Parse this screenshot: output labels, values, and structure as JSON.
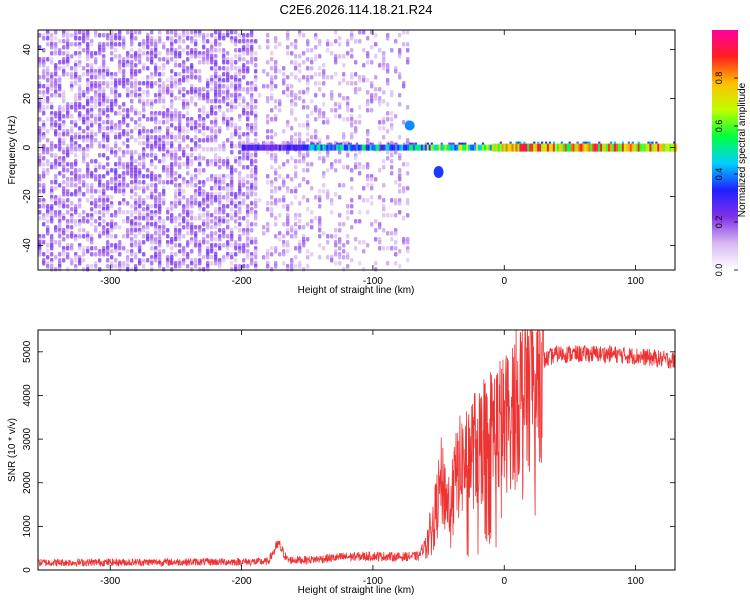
{
  "title": "C2E6.2026.114.18.21.R24",
  "chart_data": [
    {
      "type": "heatmap",
      "xlabel": "Height of straight line (km)",
      "ylabel": "Frequency (Hz)",
      "xlim": [
        -355,
        130
      ],
      "ylim": [
        -50,
        48
      ],
      "xticks": [
        -300,
        -200,
        -100,
        0,
        100
      ],
      "yticks": [
        -40,
        -20,
        0,
        20,
        40
      ],
      "tick_labels_x": [
        "-300",
        "-200",
        "-100",
        "0",
        "100"
      ],
      "tick_labels_y": [
        "-40",
        "-20",
        "0",
        "20",
        "40"
      ],
      "grid": false,
      "colorbar": {
        "label": "Normalized spectral amplitude",
        "range": [
          0,
          1
        ],
        "ticks": [
          0.0,
          0.2,
          0.4,
          0.6,
          0.8
        ],
        "tick_labels": [
          "0.0",
          "0.2",
          "0.4",
          "0.6",
          "0.8"
        ],
        "colormap": [
          "#ffffff",
          "#d8b8f0",
          "#8030e8",
          "#2020ff",
          "#00d0ff",
          "#00ff40",
          "#c0ff00",
          "#ffc000",
          "#ff2020",
          "#ff00a0"
        ]
      },
      "features": {
        "noise_x_range": [
          -355,
          -72
        ],
        "carrier_frequency": 0,
        "carrier_strong_x_range": [
          -10,
          130
        ],
        "side_blob": {
          "x": -50,
          "y": -10
        }
      }
    },
    {
      "type": "line",
      "xlabel": "Height of straight line (km)",
      "ylabel": "SNR (10 * v/v)",
      "xlim": [
        -355,
        130
      ],
      "ylim": [
        0,
        5500
      ],
      "xticks": [
        -300,
        -200,
        -100,
        0,
        100
      ],
      "yticks": [
        0,
        1000,
        2000,
        3000,
        4000,
        5000
      ],
      "tick_labels_x": [
        "-300",
        "-200",
        "-100",
        "0",
        "100"
      ],
      "tick_labels_y": [
        "0",
        "1000",
        "2000",
        "3000",
        "4000",
        "5000"
      ],
      "grid": false,
      "line_color": "#ee3333",
      "profile": {
        "x": [
          -355,
          -180,
          -172,
          -165,
          -150,
          -120,
          -100,
          -80,
          -65,
          -55,
          -48,
          -42,
          -35,
          -25,
          -15,
          -5,
          0,
          10,
          20,
          30,
          40,
          60,
          80,
          100,
          115,
          130
        ],
        "y": [
          170,
          190,
          600,
          230,
          230,
          300,
          320,
          300,
          320,
          900,
          2000,
          1500,
          2300,
          2700,
          3000,
          3300,
          3300,
          3900,
          4400,
          4800,
          4950,
          4950,
          4950,
          4900,
          4850,
          4800
        ]
      }
    }
  ]
}
